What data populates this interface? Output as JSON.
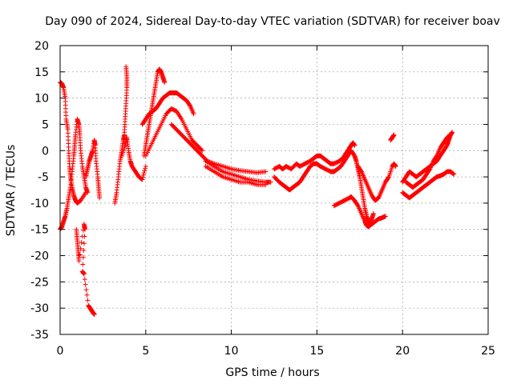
{
  "chart_data": {
    "type": "scatter",
    "title": "Day 090 of 2024, Sidereal Day-to-day VTEC variation (SDTVAR) for receiver boav",
    "xlabel": "GPS time / hours",
    "ylabel": "SDTVAR / TECUs",
    "xlim": [
      0,
      25
    ],
    "ylim": [
      -35,
      20
    ],
    "xticks": [
      "0",
      "5",
      "10",
      "15",
      "20",
      "25"
    ],
    "yticks": [
      "-35",
      "-30",
      "-25",
      "-20",
      "-15",
      "-10",
      "-5",
      "0",
      "5",
      "10",
      "15",
      "20"
    ],
    "grid": true,
    "marker": "plus",
    "color": "#ff0000",
    "series": [
      {
        "name": "s1",
        "points": [
          [
            0.0,
            13.0
          ],
          [
            0.1,
            12.8
          ],
          [
            0.2,
            12.0
          ],
          [
            0.3,
            10.0
          ],
          [
            0.35,
            6.0
          ],
          [
            0.45,
            4.0
          ],
          [
            0.5,
            0.0
          ],
          [
            0.55,
            -3.0
          ],
          [
            0.6,
            -5.0
          ],
          [
            0.7,
            -7.0
          ],
          [
            0.8,
            -8.5
          ],
          [
            0.9,
            -9.5
          ],
          [
            1.0,
            -10.0
          ],
          [
            1.2,
            -9.5
          ],
          [
            1.5,
            -8.0
          ]
        ]
      },
      {
        "name": "s2",
        "points": [
          [
            0.0,
            -15.0
          ],
          [
            0.1,
            -14.5
          ],
          [
            0.2,
            -13.5
          ],
          [
            0.3,
            -12.5
          ],
          [
            0.4,
            -11.0
          ],
          [
            0.5,
            -9.0
          ],
          [
            0.6,
            -7.0
          ],
          [
            0.7,
            -4.0
          ],
          [
            0.8,
            -1.0
          ],
          [
            0.85,
            1.0
          ],
          [
            0.9,
            3.0
          ],
          [
            1.0,
            6.0
          ],
          [
            1.1,
            5.0
          ],
          [
            1.15,
            3.0
          ],
          [
            1.2,
            0.0
          ],
          [
            1.3,
            -3.0
          ],
          [
            1.4,
            -5.0
          ],
          [
            1.5,
            -7.0
          ],
          [
            1.6,
            -8.0
          ]
        ]
      },
      {
        "name": "s3",
        "points": [
          [
            1.5,
            -5.0
          ],
          [
            1.6,
            -3.5
          ],
          [
            1.7,
            -2.0
          ],
          [
            1.8,
            -1.0
          ],
          [
            1.9,
            0.0
          ],
          [
            2.0,
            2.0
          ],
          [
            2.05,
            1.0
          ],
          [
            2.1,
            -2.0
          ],
          [
            2.2,
            -5.0
          ],
          [
            2.25,
            -7.0
          ],
          [
            2.3,
            -9.0
          ]
        ]
      },
      {
        "name": "s4",
        "points": [
          [
            0.95,
            -15.0
          ],
          [
            1.0,
            -17.0
          ],
          [
            1.05,
            -19.0
          ],
          [
            1.1,
            -21.0
          ],
          [
            1.4,
            -14.0
          ],
          [
            1.45,
            -15.0
          ],
          [
            1.3,
            -23.0
          ],
          [
            1.4,
            -23.5
          ],
          [
            1.65,
            -29.5
          ],
          [
            1.75,
            -30.0
          ],
          [
            1.85,
            -30.5
          ],
          [
            1.95,
            -31.0
          ],
          [
            2.0,
            -31.2
          ]
        ]
      },
      {
        "name": "s5",
        "points": [
          [
            3.2,
            -10.0
          ],
          [
            3.3,
            -8.0
          ],
          [
            3.4,
            -5.0
          ],
          [
            3.5,
            -2.0
          ],
          [
            3.6,
            0.0
          ],
          [
            3.7,
            2.0
          ],
          [
            3.75,
            3.0
          ],
          [
            3.8,
            6.0
          ],
          [
            3.85,
            9.0
          ],
          [
            3.9,
            12.0
          ],
          [
            3.9,
            14.0
          ],
          [
            3.85,
            16.0
          ]
        ]
      },
      {
        "name": "s6",
        "points": [
          [
            3.6,
            -1.0
          ],
          [
            3.8,
            1.0
          ],
          [
            3.9,
            2.5
          ],
          [
            4.0,
            0.0
          ],
          [
            4.1,
            -2.0
          ],
          [
            4.2,
            -3.0
          ],
          [
            4.4,
            -4.0
          ],
          [
            4.6,
            -5.0
          ],
          [
            4.8,
            -5.5
          ],
          [
            5.0,
            -3.0
          ]
        ]
      },
      {
        "name": "s7",
        "points": [
          [
            4.9,
            -1.0
          ],
          [
            5.0,
            1.0
          ],
          [
            5.1,
            3.0
          ],
          [
            5.2,
            5.0
          ],
          [
            5.3,
            7.0
          ],
          [
            5.4,
            9.0
          ],
          [
            5.5,
            11.0
          ],
          [
            5.6,
            13.0
          ],
          [
            5.7,
            15.0
          ],
          [
            5.8,
            15.5
          ],
          [
            5.9,
            15.0
          ],
          [
            6.0,
            14.0
          ],
          [
            6.1,
            13.0
          ]
        ]
      },
      {
        "name": "s8",
        "points": [
          [
            4.8,
            5.0
          ],
          [
            5.0,
            6.0
          ],
          [
            5.2,
            7.0
          ],
          [
            5.4,
            7.5
          ],
          [
            5.6,
            8.0
          ],
          [
            5.8,
            9.0
          ],
          [
            6.0,
            10.0
          ],
          [
            6.2,
            10.5
          ],
          [
            6.4,
            11.0
          ],
          [
            6.6,
            11.0
          ],
          [
            6.8,
            11.0
          ],
          [
            7.0,
            10.5
          ],
          [
            7.2,
            10.0
          ],
          [
            7.4,
            9.5
          ],
          [
            7.6,
            8.5
          ],
          [
            7.8,
            7.0
          ]
        ]
      },
      {
        "name": "s9",
        "points": [
          [
            5.0,
            -1.0
          ],
          [
            5.3,
            1.0
          ],
          [
            5.6,
            3.0
          ],
          [
            5.9,
            5.0
          ],
          [
            6.2,
            7.0
          ],
          [
            6.5,
            8.0
          ],
          [
            6.8,
            7.5
          ],
          [
            7.1,
            6.0
          ],
          [
            7.4,
            4.0
          ],
          [
            7.7,
            2.0
          ],
          [
            8.0,
            1.0
          ],
          [
            8.3,
            0.0
          ]
        ]
      },
      {
        "name": "s10",
        "points": [
          [
            6.5,
            5.0
          ],
          [
            6.8,
            4.0
          ],
          [
            7.1,
            3.0
          ],
          [
            7.4,
            2.0
          ],
          [
            7.7,
            1.0
          ],
          [
            8.0,
            0.0
          ],
          [
            8.3,
            -1.0
          ],
          [
            8.6,
            -2.0
          ],
          [
            9.0,
            -2.5
          ],
          [
            9.5,
            -3.0
          ],
          [
            10.0,
            -3.5
          ],
          [
            10.5,
            -3.8
          ],
          [
            11.0,
            -4.0
          ],
          [
            11.5,
            -4.2
          ],
          [
            12.0,
            -4.0
          ]
        ]
      },
      {
        "name": "s11",
        "points": [
          [
            8.5,
            -2.0
          ],
          [
            9.0,
            -3.0
          ],
          [
            9.5,
            -4.0
          ],
          [
            10.0,
            -4.5
          ],
          [
            10.5,
            -5.0
          ],
          [
            11.0,
            -5.5
          ],
          [
            11.5,
            -5.8
          ],
          [
            12.0,
            -6.0
          ],
          [
            12.3,
            -6.0
          ]
        ]
      },
      {
        "name": "s12",
        "points": [
          [
            8.5,
            -3.0
          ],
          [
            9.0,
            -4.0
          ],
          [
            9.5,
            -5.0
          ],
          [
            10.0,
            -5.5
          ],
          [
            10.5,
            -6.0
          ],
          [
            11.0,
            -6.0
          ],
          [
            11.5,
            -6.5
          ],
          [
            12.0,
            -6.5
          ]
        ]
      },
      {
        "name": "s13",
        "points": [
          [
            12.5,
            -3.5
          ],
          [
            12.8,
            -3.0
          ],
          [
            13.0,
            -3.5
          ],
          [
            13.2,
            -3.0
          ],
          [
            13.5,
            -3.5
          ],
          [
            13.8,
            -2.5
          ],
          [
            14.0,
            -3.0
          ],
          [
            14.3,
            -2.5
          ],
          [
            14.6,
            -2.0
          ],
          [
            14.8,
            -1.5
          ],
          [
            15.0,
            -1.0
          ],
          [
            15.2,
            -1.0
          ],
          [
            15.4,
            -1.5
          ],
          [
            15.6,
            -2.0
          ],
          [
            15.8,
            -2.5
          ],
          [
            16.0,
            -2.5
          ],
          [
            16.3,
            -2.0
          ],
          [
            16.5,
            -1.5
          ],
          [
            16.7,
            -0.5
          ],
          [
            16.9,
            0.5
          ],
          [
            17.0,
            1.0
          ],
          [
            17.1,
            1.5
          ],
          [
            17.2,
            1.0
          ]
        ]
      },
      {
        "name": "s14",
        "points": [
          [
            12.5,
            -5.0
          ],
          [
            12.8,
            -6.0
          ],
          [
            13.0,
            -6.5
          ],
          [
            13.2,
            -7.0
          ],
          [
            13.4,
            -7.5
          ],
          [
            13.6,
            -7.0
          ],
          [
            13.8,
            -6.5
          ],
          [
            14.0,
            -6.0
          ],
          [
            14.2,
            -5.0
          ],
          [
            14.4,
            -4.0
          ],
          [
            14.6,
            -3.0
          ],
          [
            14.8,
            -2.5
          ],
          [
            15.0,
            -2.5
          ],
          [
            15.2,
            -3.0
          ],
          [
            15.5,
            -3.5
          ],
          [
            15.8,
            -4.0
          ],
          [
            16.0,
            -4.0
          ],
          [
            16.2,
            -3.5
          ],
          [
            16.4,
            -3.0
          ],
          [
            16.6,
            -2.0
          ],
          [
            16.8,
            -1.0
          ],
          [
            17.0,
            0.0
          ],
          [
            17.2,
            -1.0
          ],
          [
            17.3,
            -2.0
          ],
          [
            17.4,
            -3.5
          ],
          [
            17.5,
            -5.0
          ],
          [
            17.6,
            -7.0
          ],
          [
            17.7,
            -9.0
          ],
          [
            17.8,
            -11.0
          ],
          [
            17.9,
            -12.5
          ],
          [
            18.0,
            -13.5
          ],
          [
            18.1,
            -14.0
          ],
          [
            18.2,
            -13.0
          ],
          [
            18.3,
            -12.0
          ]
        ]
      },
      {
        "name": "s15",
        "points": [
          [
            16.0,
            -10.5
          ],
          [
            16.3,
            -10.0
          ],
          [
            16.6,
            -9.5
          ],
          [
            16.9,
            -9.0
          ],
          [
            17.0,
            -8.8
          ],
          [
            17.2,
            -9.5
          ],
          [
            17.4,
            -10.5
          ],
          [
            17.6,
            -12.0
          ],
          [
            17.8,
            -13.5
          ],
          [
            17.9,
            -14.2
          ],
          [
            18.0,
            -14.5
          ],
          [
            18.2,
            -14.0
          ],
          [
            18.4,
            -13.5
          ],
          [
            18.6,
            -13.0
          ],
          [
            18.8,
            -12.8
          ],
          [
            19.0,
            -12.5
          ]
        ]
      },
      {
        "name": "s16",
        "points": [
          [
            17.4,
            -3.0
          ],
          [
            17.6,
            -4.0
          ],
          [
            17.8,
            -5.5
          ],
          [
            18.0,
            -7.0
          ],
          [
            18.2,
            -8.5
          ],
          [
            18.4,
            -9.5
          ],
          [
            18.6,
            -9.0
          ],
          [
            18.8,
            -7.5
          ],
          [
            19.0,
            -6.0
          ],
          [
            19.2,
            -5.0
          ],
          [
            19.4,
            -3.0
          ],
          [
            19.5,
            -2.5
          ],
          [
            19.6,
            -3.0
          ]
        ]
      },
      {
        "name": "s17",
        "points": [
          [
            19.3,
            2.0
          ],
          [
            19.4,
            2.5
          ],
          [
            19.5,
            3.0
          ]
        ]
      },
      {
        "name": "s18",
        "points": [
          [
            20.0,
            -6.0
          ],
          [
            20.2,
            -5.0
          ],
          [
            20.4,
            -4.0
          ],
          [
            20.6,
            -4.5
          ],
          [
            20.8,
            -5.0
          ],
          [
            21.0,
            -4.5
          ],
          [
            21.2,
            -4.0
          ],
          [
            21.4,
            -3.5
          ],
          [
            21.6,
            -3.0
          ],
          [
            21.8,
            -2.5
          ],
          [
            22.0,
            -2.0
          ],
          [
            22.2,
            -1.0
          ],
          [
            22.4,
            0.0
          ],
          [
            22.6,
            1.0
          ],
          [
            22.7,
            2.0
          ],
          [
            22.8,
            3.0
          ],
          [
            22.9,
            3.5
          ]
        ]
      },
      {
        "name": "s19",
        "points": [
          [
            20.0,
            -8.0
          ],
          [
            20.2,
            -8.5
          ],
          [
            20.4,
            -9.0
          ],
          [
            20.6,
            -8.5
          ],
          [
            20.8,
            -8.0
          ],
          [
            21.0,
            -7.5
          ],
          [
            21.2,
            -7.0
          ],
          [
            21.4,
            -6.5
          ],
          [
            21.6,
            -6.0
          ],
          [
            21.8,
            -5.5
          ],
          [
            22.0,
            -5.0
          ],
          [
            22.2,
            -4.8
          ],
          [
            22.4,
            -4.5
          ],
          [
            22.6,
            -4.0
          ],
          [
            22.8,
            -4.0
          ],
          [
            23.0,
            -4.5
          ]
        ]
      },
      {
        "name": "s20",
        "points": [
          [
            20.2,
            -6.0
          ],
          [
            20.4,
            -6.5
          ],
          [
            20.6,
            -7.0
          ],
          [
            20.8,
            -6.5
          ],
          [
            21.0,
            -6.0
          ],
          [
            21.2,
            -5.5
          ],
          [
            21.4,
            -4.5
          ],
          [
            21.6,
            -3.5
          ],
          [
            21.8,
            -2.0
          ],
          [
            22.0,
            -1.0
          ],
          [
            22.2,
            0.5
          ],
          [
            22.4,
            1.5
          ],
          [
            22.6,
            2.5
          ],
          [
            22.8,
            3.0
          ]
        ]
      }
    ]
  }
}
